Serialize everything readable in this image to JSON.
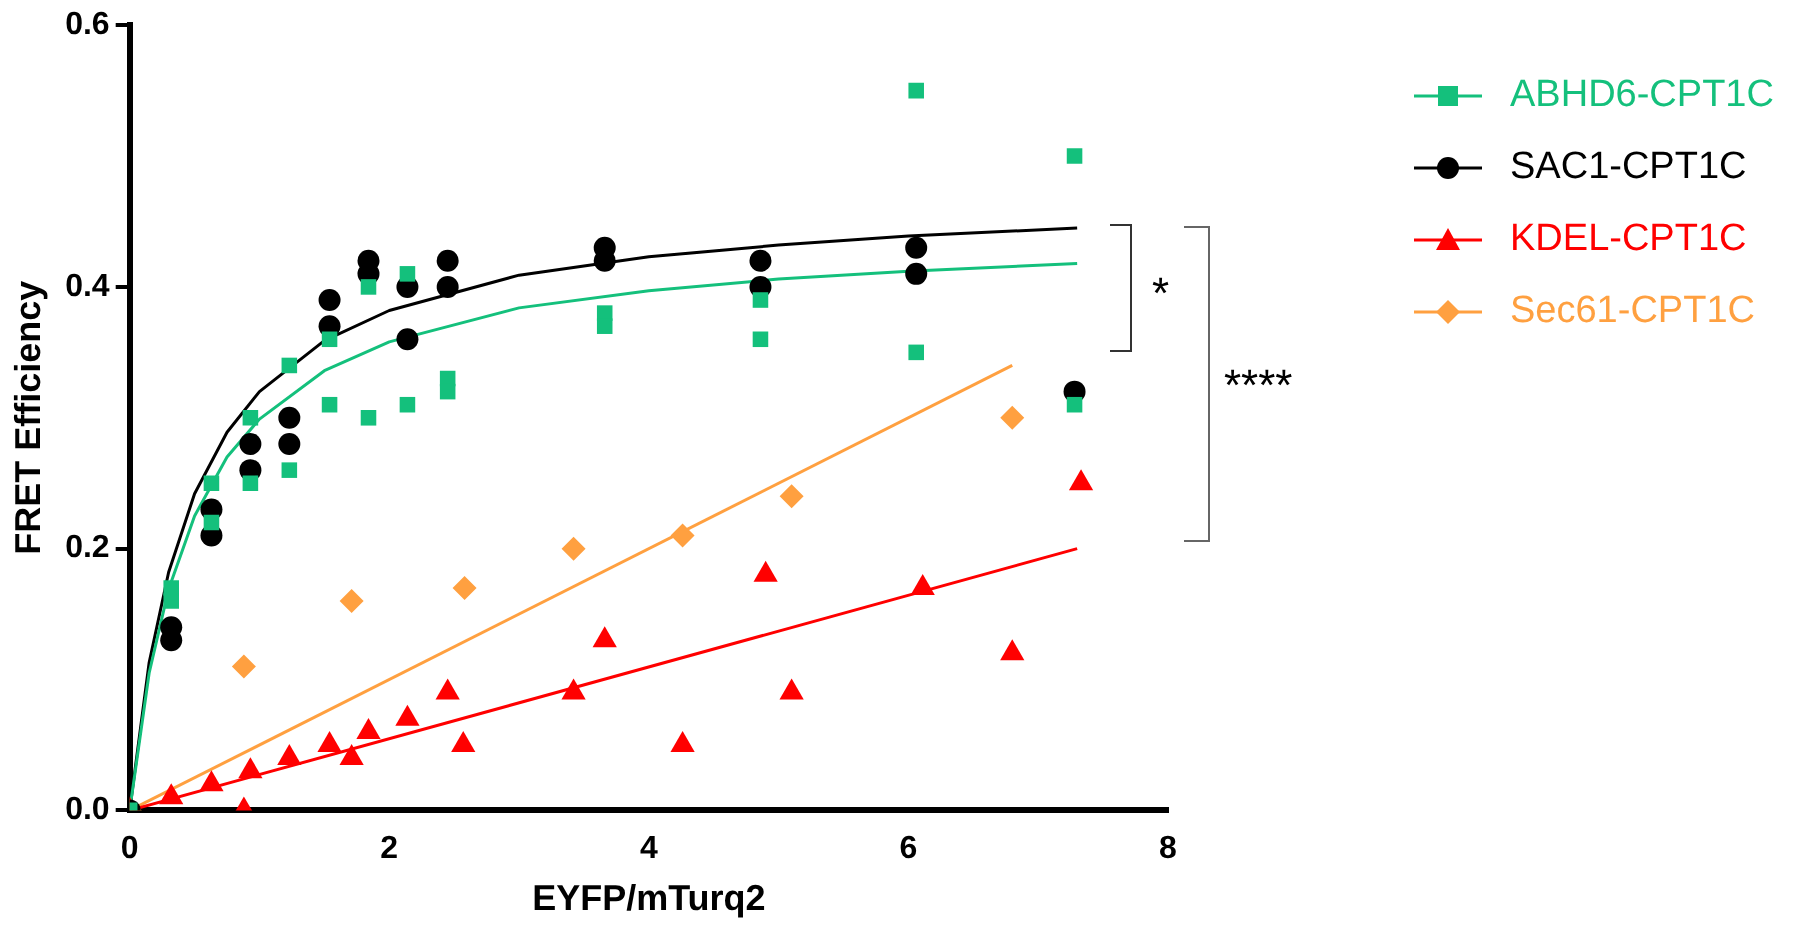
{
  "chart_data": {
    "type": "scatter",
    "xlabel": "EYFP/mTurq2",
    "ylabel": "FRET Efficiency",
    "xlim": [
      0,
      8
    ],
    "xticks": [
      0,
      2,
      4,
      6,
      8
    ],
    "ylim": [
      0,
      0.6
    ],
    "yticks": [
      {
        "value": 0,
        "label": "0.0"
      },
      {
        "value": 0.2,
        "label": "0.2"
      },
      {
        "value": 0.4,
        "label": "0.4"
      },
      {
        "value": 0.6,
        "label": "0.6"
      }
    ],
    "grid": false,
    "legend": "right",
    "annotations": [
      "*",
      "****"
    ],
    "series": [
      {
        "name": "ABHD6-CPT1C",
        "color": "#14c07c",
        "marker": "square",
        "x": [
          0,
          0.32,
          0.32,
          0.63,
          0.63,
          0.93,
          0.93,
          1.23,
          1.23,
          1.54,
          1.54,
          1.84,
          1.84,
          2.14,
          2.14,
          2.45,
          2.45,
          3.66,
          3.66,
          4.86,
          4.86,
          6.06,
          6.06,
          7.28,
          7.28
        ],
        "values": [
          0,
          0.17,
          0.16,
          0.25,
          0.22,
          0.3,
          0.25,
          0.34,
          0.26,
          0.36,
          0.31,
          0.4,
          0.3,
          0.41,
          0.31,
          0.33,
          0.32,
          0.38,
          0.37,
          0.39,
          0.36,
          0.55,
          0.35,
          0.5,
          0.31
        ]
      },
      {
        "name": "SAC1-CPT1C",
        "color": "#000000",
        "marker": "circle",
        "x": [
          0,
          0.32,
          0.32,
          0.63,
          0.63,
          0.93,
          0.93,
          1.23,
          1.23,
          1.54,
          1.54,
          1.84,
          1.84,
          2.14,
          2.14,
          2.45,
          2.45,
          3.66,
          3.66,
          4.86,
          4.86,
          6.06,
          6.06,
          7.28
        ],
        "values": [
          0,
          0.14,
          0.13,
          0.23,
          0.21,
          0.28,
          0.26,
          0.3,
          0.28,
          0.39,
          0.37,
          0.42,
          0.41,
          0.4,
          0.36,
          0.42,
          0.4,
          0.43,
          0.42,
          0.42,
          0.4,
          0.43,
          0.41,
          0.32
        ]
      },
      {
        "name": "KDEL-CPT1C",
        "color": "#ff0000",
        "marker": "triangle",
        "x": [
          0,
          0.32,
          0.63,
          0.93,
          0.88,
          1.23,
          1.54,
          1.71,
          1.84,
          2.14,
          2.45,
          2.57,
          3.42,
          3.66,
          4.26,
          4.9,
          5.1,
          6.11,
          6.8,
          7.33
        ],
        "values": [
          0,
          0.01,
          0.02,
          0.03,
          0,
          0.04,
          0.05,
          0.04,
          0.06,
          0.07,
          0.09,
          0.05,
          0.09,
          0.13,
          0.05,
          0.18,
          0.09,
          0.17,
          0.12,
          0.25
        ]
      },
      {
        "name": "Sec61-CPT1C",
        "color": "#ffa040",
        "marker": "diamond",
        "x": [
          0,
          0.88,
          1.71,
          2.58,
          3.42,
          4.26,
          5.1,
          6.8
        ],
        "values": [
          0,
          0.11,
          0.16,
          0.17,
          0.2,
          0.21,
          0.24,
          0.3
        ]
      },
      {
        "type": "line",
        "color": "#14c07c",
        "marker": "none",
        "x": [
          0,
          0.15,
          0.3,
          0.5,
          0.75,
          1,
          1.5,
          2,
          3,
          4,
          5,
          6,
          7.3
        ],
        "values": [
          0,
          0.105,
          0.169,
          0.225,
          0.27,
          0.299,
          0.336,
          0.358,
          0.384,
          0.397,
          0.406,
          0.412,
          0.418
        ]
      },
      {
        "type": "line",
        "color": "#000000",
        "marker": "none",
        "x": [
          0,
          0.15,
          0.3,
          0.5,
          0.75,
          1,
          1.5,
          2,
          3,
          4,
          5,
          6,
          7.3
        ],
        "values": [
          0,
          0.113,
          0.182,
          0.242,
          0.289,
          0.32,
          0.359,
          0.382,
          0.409,
          0.423,
          0.432,
          0.439,
          0.445
        ]
      },
      {
        "type": "line",
        "color": "#ff0000",
        "marker": "none",
        "x": [
          0,
          7.3
        ],
        "values": [
          0,
          0.2
        ]
      },
      {
        "type": "line",
        "color": "#ffa040",
        "marker": "none",
        "x": [
          0,
          6.8
        ],
        "values": [
          0,
          0.34
        ]
      }
    ]
  }
}
